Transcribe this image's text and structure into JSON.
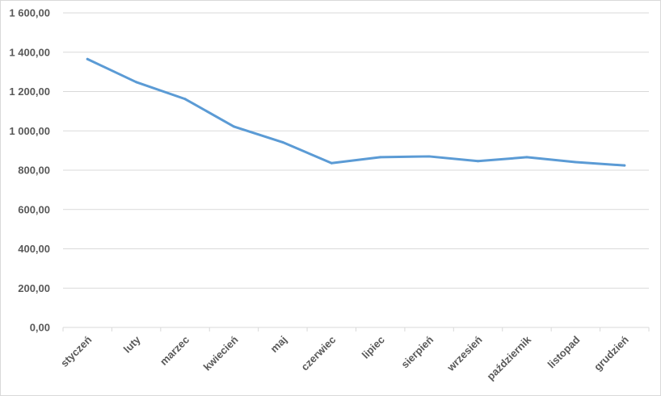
{
  "chart_data": {
    "type": "line",
    "title": "",
    "xlabel": "",
    "ylabel": "",
    "categories": [
      "styczeń",
      "luty",
      "marzec",
      "kwiecień",
      "maj",
      "czerwiec",
      "lipiec",
      "sierpień",
      "wrzesień",
      "październik",
      "listopad",
      "grudzień"
    ],
    "series": [
      {
        "values": [
          1365,
          1248,
          1162,
          1022,
          942,
          836,
          866,
          870,
          846,
          866,
          841,
          824
        ]
      }
    ],
    "ylim": [
      0,
      1600
    ],
    "yticks": [
      0,
      200,
      400,
      600,
      800,
      1000,
      1200,
      1400,
      1600
    ],
    "ytick_labels": [
      "0,00",
      "200,00",
      "400,00",
      "600,00",
      "800,00",
      "1 000,00",
      "1 200,00",
      "1 400,00",
      "1 600,00"
    ],
    "grid": true,
    "legend": "none",
    "colors": {
      "line": "#5b9bd5",
      "grid": "#d9d9d9",
      "text": "#595959"
    }
  }
}
